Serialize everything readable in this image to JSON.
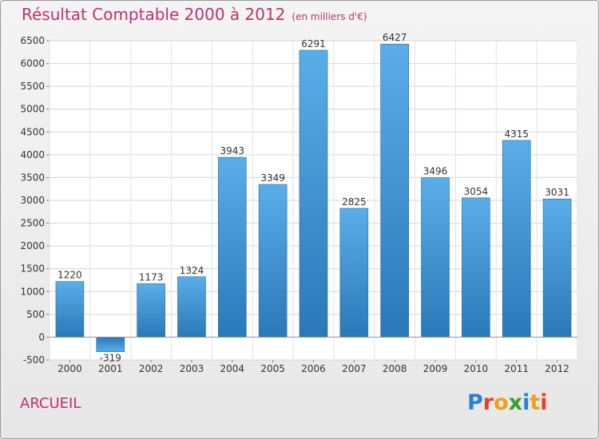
{
  "header": {
    "title": "Résultat Comptable 2000 à 2012",
    "subtitle": "(en milliers d'€)"
  },
  "footer": {
    "commune": "ARCUEIL",
    "logo_text": "Proxiti"
  },
  "colors": {
    "title": "#c0306a",
    "bar_top": "#5aaee8",
    "bar_bottom": "#2a78b8",
    "logo": [
      "#2a7fd0",
      "#e8402a",
      "#f0a020",
      "#3aa030",
      "#2a7fd0",
      "#f0a020",
      "#e8402a"
    ]
  },
  "chart_data": {
    "type": "bar",
    "categories": [
      "2000",
      "2001",
      "2002",
      "2003",
      "2004",
      "2005",
      "2006",
      "2007",
      "2008",
      "2009",
      "2010",
      "2011",
      "2012"
    ],
    "values": [
      1220,
      -319,
      1173,
      1324,
      3943,
      3349,
      6291,
      2825,
      6427,
      3496,
      3054,
      4315,
      3031
    ],
    "data_labels": [
      "1220",
      "-319",
      "1173",
      "1324",
      "3943",
      "3349",
      "6291",
      "2825",
      "6427",
      "3496",
      "3054",
      "4315",
      "3031"
    ],
    "ylim": [
      -500,
      6500
    ],
    "yticks": [
      -500,
      0,
      500,
      1000,
      1500,
      2000,
      2500,
      3000,
      3500,
      4000,
      4500,
      5000,
      5500,
      6000,
      6500
    ],
    "grid": true,
    "legend": "none"
  }
}
